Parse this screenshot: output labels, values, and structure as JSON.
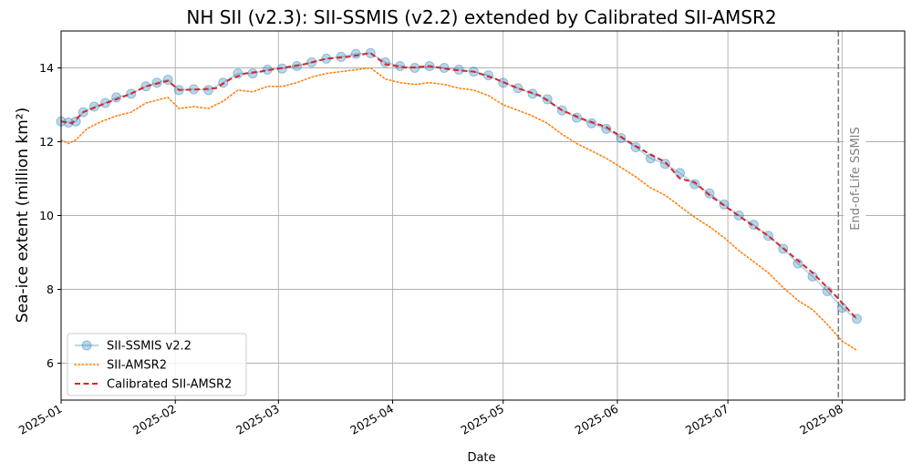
{
  "chart_data": {
    "type": "line",
    "title": "NH SII (v2.3): SII-SSMIS (v2.2) extended by Calibrated SII-AMSR2",
    "xlabel": "Date",
    "ylabel": "Sea-ice extent (million km²)",
    "x_ticks": [
      "2025-01",
      "2025-02",
      "2025-03",
      "2025-04",
      "2025-05",
      "2025-06",
      "2025-07",
      "2025-08"
    ],
    "y_ticks": [
      6,
      8,
      10,
      12,
      14
    ],
    "xlim": [
      "2025-01-01",
      "2025-08-18"
    ],
    "ylim": [
      5.0,
      15.0
    ],
    "grid": true,
    "legend_position": "lower-left",
    "annotation": {
      "text": "End-of-Life SSMIS",
      "date": "2025-07-31",
      "color": "#808080"
    },
    "series": [
      {
        "name": "SII-SSMIS v2.2",
        "style": "line-circle",
        "color": "#1f77b4",
        "points": [
          [
            "2025-01-01",
            12.55
          ],
          [
            "2025-01-03",
            12.52
          ],
          [
            "2025-01-05",
            12.55
          ],
          [
            "2025-01-07",
            12.8
          ],
          [
            "2025-01-10",
            12.95
          ],
          [
            "2025-01-13",
            13.05
          ],
          [
            "2025-01-16",
            13.2
          ],
          [
            "2025-01-20",
            13.3
          ],
          [
            "2025-01-24",
            13.5
          ],
          [
            "2025-01-27",
            13.6
          ],
          [
            "2025-01-30",
            13.68
          ],
          [
            "2025-02-02",
            13.4
          ],
          [
            "2025-02-06",
            13.42
          ],
          [
            "2025-02-10",
            13.4
          ],
          [
            "2025-02-14",
            13.6
          ],
          [
            "2025-02-18",
            13.85
          ],
          [
            "2025-02-22",
            13.85
          ],
          [
            "2025-02-26",
            13.95
          ],
          [
            "2025-03-02",
            13.98
          ],
          [
            "2025-03-06",
            14.05
          ],
          [
            "2025-03-10",
            14.15
          ],
          [
            "2025-03-14",
            14.25
          ],
          [
            "2025-03-18",
            14.3
          ],
          [
            "2025-03-22",
            14.38
          ],
          [
            "2025-03-26",
            14.4
          ],
          [
            "2025-03-30",
            14.15
          ],
          [
            "2025-04-03",
            14.05
          ],
          [
            "2025-04-07",
            14.0
          ],
          [
            "2025-04-11",
            14.05
          ],
          [
            "2025-04-15",
            14.0
          ],
          [
            "2025-04-19",
            13.95
          ],
          [
            "2025-04-23",
            13.9
          ],
          [
            "2025-04-27",
            13.8
          ],
          [
            "2025-05-01",
            13.6
          ],
          [
            "2025-05-05",
            13.45
          ],
          [
            "2025-05-09",
            13.3
          ],
          [
            "2025-05-13",
            13.15
          ],
          [
            "2025-05-17",
            12.85
          ],
          [
            "2025-05-21",
            12.65
          ],
          [
            "2025-05-25",
            12.5
          ],
          [
            "2025-05-29",
            12.35
          ],
          [
            "2025-06-02",
            12.1
          ],
          [
            "2025-06-06",
            11.85
          ],
          [
            "2025-06-10",
            11.55
          ],
          [
            "2025-06-14",
            11.4
          ],
          [
            "2025-06-18",
            11.15
          ],
          [
            "2025-06-22",
            10.85
          ],
          [
            "2025-06-26",
            10.6
          ],
          [
            "2025-06-30",
            10.3
          ],
          [
            "2025-07-04",
            10.0
          ],
          [
            "2025-07-08",
            9.75
          ],
          [
            "2025-07-12",
            9.45
          ],
          [
            "2025-07-16",
            9.1
          ],
          [
            "2025-07-20",
            8.7
          ],
          [
            "2025-07-24",
            8.35
          ],
          [
            "2025-07-28",
            7.95
          ],
          [
            "2025-08-01",
            7.5
          ],
          [
            "2025-08-05",
            7.2
          ]
        ]
      },
      {
        "name": "SII-AMSR2",
        "style": "dotted",
        "color": "#ff7f0e",
        "points": [
          [
            "2025-01-01",
            12.05
          ],
          [
            "2025-01-03",
            11.95
          ],
          [
            "2025-01-05",
            12.05
          ],
          [
            "2025-01-08",
            12.35
          ],
          [
            "2025-01-12",
            12.55
          ],
          [
            "2025-01-16",
            12.7
          ],
          [
            "2025-01-20",
            12.8
          ],
          [
            "2025-01-24",
            13.05
          ],
          [
            "2025-01-28",
            13.15
          ],
          [
            "2025-01-30",
            13.2
          ],
          [
            "2025-02-02",
            12.9
          ],
          [
            "2025-02-06",
            12.95
          ],
          [
            "2025-02-10",
            12.9
          ],
          [
            "2025-02-14",
            13.1
          ],
          [
            "2025-02-18",
            13.4
          ],
          [
            "2025-02-22",
            13.35
          ],
          [
            "2025-02-26",
            13.5
          ],
          [
            "2025-03-02",
            13.5
          ],
          [
            "2025-03-06",
            13.6
          ],
          [
            "2025-03-10",
            13.75
          ],
          [
            "2025-03-14",
            13.85
          ],
          [
            "2025-03-18",
            13.9
          ],
          [
            "2025-03-22",
            13.95
          ],
          [
            "2025-03-26",
            14.0
          ],
          [
            "2025-03-30",
            13.7
          ],
          [
            "2025-04-03",
            13.6
          ],
          [
            "2025-04-07",
            13.55
          ],
          [
            "2025-04-11",
            13.6
          ],
          [
            "2025-04-15",
            13.55
          ],
          [
            "2025-04-19",
            13.45
          ],
          [
            "2025-04-23",
            13.4
          ],
          [
            "2025-04-27",
            13.25
          ],
          [
            "2025-05-01",
            13.0
          ],
          [
            "2025-05-05",
            12.85
          ],
          [
            "2025-05-09",
            12.7
          ],
          [
            "2025-05-13",
            12.5
          ],
          [
            "2025-05-17",
            12.2
          ],
          [
            "2025-05-21",
            11.95
          ],
          [
            "2025-05-25",
            11.75
          ],
          [
            "2025-05-29",
            11.55
          ],
          [
            "2025-06-02",
            11.3
          ],
          [
            "2025-06-06",
            11.05
          ],
          [
            "2025-06-10",
            10.75
          ],
          [
            "2025-06-14",
            10.55
          ],
          [
            "2025-06-18",
            10.25
          ],
          [
            "2025-06-22",
            9.95
          ],
          [
            "2025-06-26",
            9.7
          ],
          [
            "2025-06-30",
            9.4
          ],
          [
            "2025-07-04",
            9.05
          ],
          [
            "2025-07-08",
            8.75
          ],
          [
            "2025-07-12",
            8.45
          ],
          [
            "2025-07-16",
            8.05
          ],
          [
            "2025-07-20",
            7.7
          ],
          [
            "2025-07-24",
            7.45
          ],
          [
            "2025-07-28",
            7.05
          ],
          [
            "2025-08-01",
            6.6
          ],
          [
            "2025-08-05",
            6.35
          ]
        ]
      },
      {
        "name": "Calibrated SII-AMSR2",
        "style": "dashed",
        "color": "#d62728",
        "points": [
          [
            "2025-01-01",
            12.55
          ],
          [
            "2025-01-04",
            12.5
          ],
          [
            "2025-01-07",
            12.8
          ],
          [
            "2025-01-12",
            13.0
          ],
          [
            "2025-01-16",
            13.15
          ],
          [
            "2025-01-20",
            13.3
          ],
          [
            "2025-01-24",
            13.5
          ],
          [
            "2025-01-30",
            13.65
          ],
          [
            "2025-02-02",
            13.4
          ],
          [
            "2025-02-08",
            13.42
          ],
          [
            "2025-02-12",
            13.45
          ],
          [
            "2025-02-16",
            13.7
          ],
          [
            "2025-02-20",
            13.85
          ],
          [
            "2025-02-24",
            13.9
          ],
          [
            "2025-03-02",
            14.0
          ],
          [
            "2025-03-08",
            14.1
          ],
          [
            "2025-03-14",
            14.25
          ],
          [
            "2025-03-20",
            14.3
          ],
          [
            "2025-03-26",
            14.4
          ],
          [
            "2025-03-30",
            14.1
          ],
          [
            "2025-04-05",
            14.0
          ],
          [
            "2025-04-11",
            14.05
          ],
          [
            "2025-04-17",
            13.95
          ],
          [
            "2025-04-23",
            13.9
          ],
          [
            "2025-04-29",
            13.7
          ],
          [
            "2025-05-05",
            13.45
          ],
          [
            "2025-05-11",
            13.25
          ],
          [
            "2025-05-17",
            12.85
          ],
          [
            "2025-05-23",
            12.6
          ],
          [
            "2025-05-29",
            12.4
          ],
          [
            "2025-06-04",
            12.0
          ],
          [
            "2025-06-10",
            11.65
          ],
          [
            "2025-06-14",
            11.45
          ],
          [
            "2025-06-18",
            11.0
          ],
          [
            "2025-06-22",
            10.9
          ],
          [
            "2025-06-26",
            10.55
          ],
          [
            "2025-07-01",
            10.2
          ],
          [
            "2025-07-06",
            9.85
          ],
          [
            "2025-07-12",
            9.45
          ],
          [
            "2025-07-18",
            8.95
          ],
          [
            "2025-07-24",
            8.45
          ],
          [
            "2025-07-30",
            7.85
          ],
          [
            "2025-08-05",
            7.2
          ]
        ]
      }
    ]
  }
}
